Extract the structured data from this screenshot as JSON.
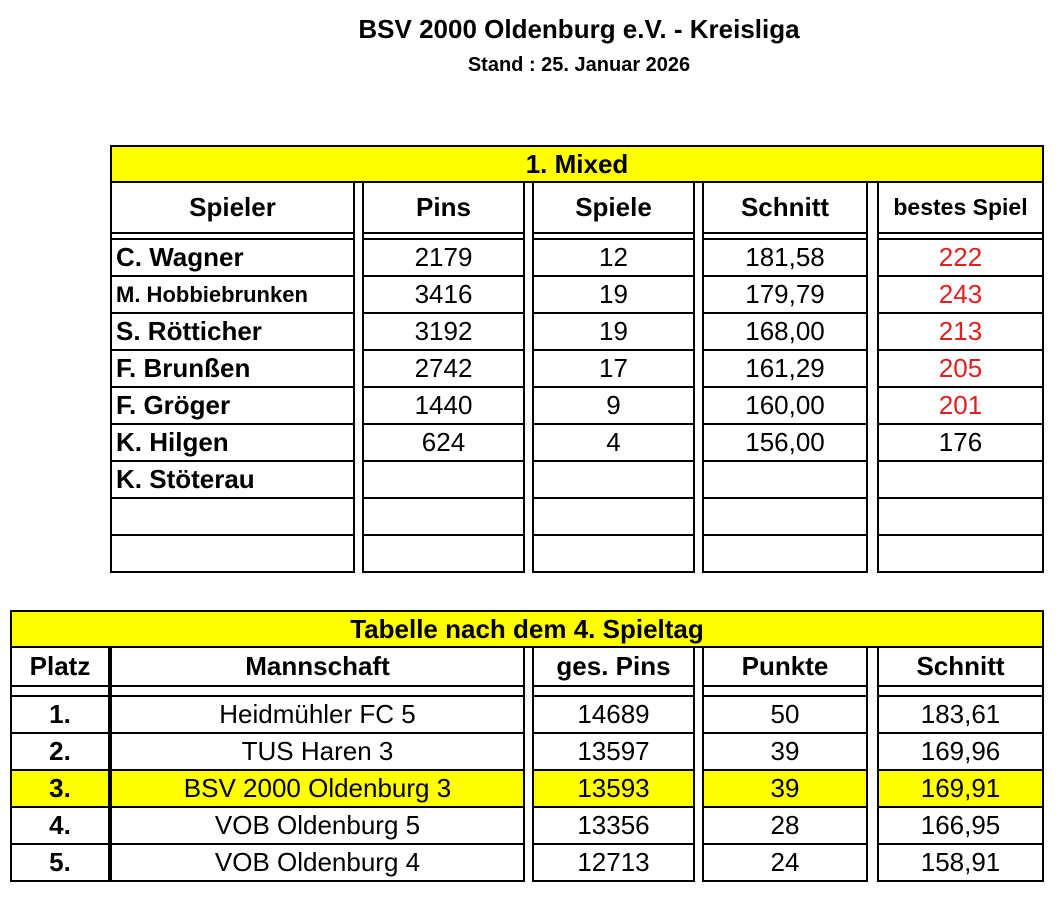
{
  "header": {
    "title": "BSV 2000 Oldenburg e.V. - Kreisliga",
    "subtitle": "Stand : 25. Januar 2026"
  },
  "player_table": {
    "title": "1. Mixed",
    "title_fill": "#ffff00",
    "columns": [
      "Spieler",
      "Pins",
      "Spiele",
      "Schnitt",
      "bestes Spiel"
    ],
    "rows": [
      [
        "C. Wagner",
        "2179",
        "12",
        "181,58",
        "222"
      ],
      [
        "M. Hobbiebrunken",
        "3416",
        "19",
        "179,79",
        "243"
      ],
      [
        "S. Rötticher",
        "3192",
        "19",
        "168,00",
        "213"
      ],
      [
        "F. Brunßen",
        "2742",
        "17",
        "161,29",
        "205"
      ],
      [
        "F. Gröger",
        "1440",
        "9",
        "160,00",
        "201"
      ],
      [
        "K. Hilgen",
        "624",
        "4",
        "156,00",
        "176"
      ],
      [
        "K. Stöterau"
      ]
    ],
    "best_colors": [
      "#e02020",
      "#e02020",
      "#e02020",
      "#e02020",
      "#e02020",
      "#000000",
      "#000000"
    ]
  },
  "league_table": {
    "title": "Tabelle nach dem 4. Spieltag",
    "title_fill": "#ffff00",
    "columns": [
      "Platz",
      "Mannschaft",
      "ges. Pins",
      "Punkte",
      "Schnitt"
    ],
    "rows": [
      [
        "1.",
        "Heidmühler FC 5",
        "14689",
        "50",
        "183,61"
      ],
      [
        "2.",
        "TUS Haren 3",
        "13597",
        "39",
        "169,96"
      ],
      [
        "3.",
        "BSV 2000 Oldenburg 3",
        "13593",
        "39",
        "169,91"
      ],
      [
        "4.",
        "VOB Oldenburg 5",
        "13356",
        "28",
        "166,95"
      ],
      [
        "5.",
        "VOB Oldenburg 4",
        "12713",
        "24",
        "158,91"
      ]
    ],
    "highlight_row": 2,
    "highlight_color": "#ffff00"
  }
}
